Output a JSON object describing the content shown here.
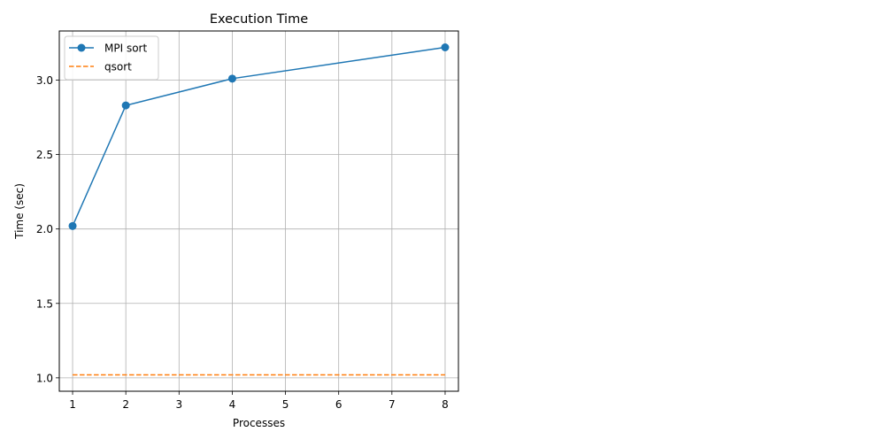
{
  "chart_data": {
    "type": "line",
    "title": "Execution Time",
    "xlabel": "Processes",
    "ylabel": "Time (sec)",
    "xlim": [
      0.75,
      8.25
    ],
    "ylim": [
      0.91,
      3.33
    ],
    "xticks": [
      1,
      2,
      3,
      4,
      5,
      6,
      7,
      8
    ],
    "xtick_labels": [
      "1",
      "2",
      "3",
      "4",
      "5",
      "6",
      "7",
      "8"
    ],
    "yticks": [
      1.0,
      1.5,
      2.0,
      2.5,
      3.0
    ],
    "ytick_labels": [
      "1.0",
      "1.5",
      "2.0",
      "2.5",
      "3.0"
    ],
    "grid": true,
    "legend_position": "top-left",
    "series": [
      {
        "name": "MPI sort",
        "x": [
          1,
          2,
          4,
          8
        ],
        "y": [
          2.02,
          2.83,
          3.01,
          3.22
        ],
        "color": "#1f77b4",
        "line_style": "solid",
        "marker": "circle"
      },
      {
        "name": "qsort",
        "x": [
          1,
          2,
          4,
          8
        ],
        "y": [
          1.02,
          1.02,
          1.02,
          1.02
        ],
        "color": "#ff7f0e",
        "line_style": "dashed",
        "marker": "none"
      }
    ]
  }
}
